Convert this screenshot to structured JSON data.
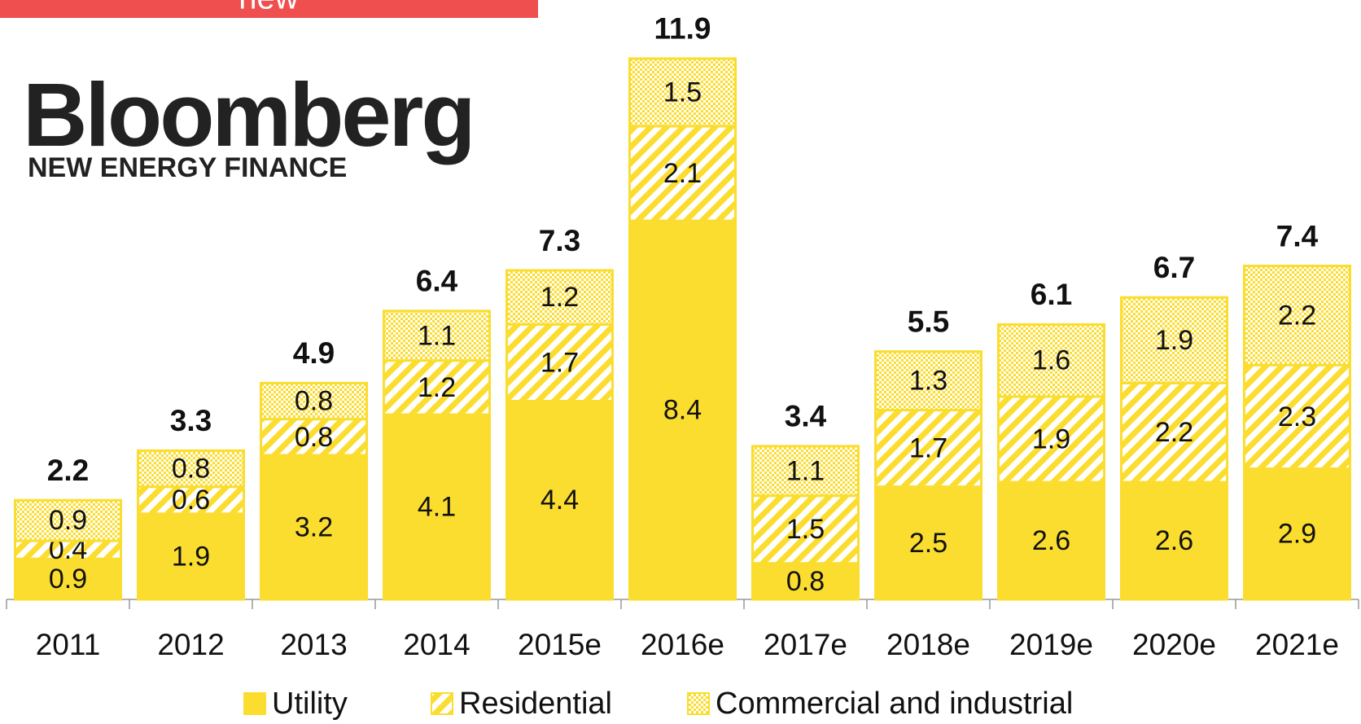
{
  "banner": "new",
  "logo": {
    "name": "Bloomberg",
    "subtitle": "NEW ENERGY FINANCE"
  },
  "chart_data": {
    "type": "stacked_bar",
    "categories": [
      "2011",
      "2012",
      "2013",
      "2014",
      "2015e",
      "2016e",
      "2017e",
      "2018e",
      "2019e",
      "2020e",
      "2021e"
    ],
    "series": [
      {
        "name": "Utility",
        "color": "#fbdd2f",
        "pattern": "solid",
        "values": [
          0.9,
          1.9,
          3.2,
          4.1,
          4.4,
          8.4,
          0.8,
          2.5,
          2.6,
          2.6,
          2.9
        ]
      },
      {
        "name": "Residential",
        "color": "#fbdd2f",
        "pattern": "stripes",
        "values": [
          0.4,
          0.6,
          0.8,
          1.2,
          1.7,
          2.1,
          1.5,
          1.7,
          1.9,
          2.2,
          2.3
        ]
      },
      {
        "name": "Commercial and industrial",
        "color": "#fbdd2f",
        "pattern": "dots",
        "values": [
          0.9,
          0.8,
          0.8,
          1.1,
          1.2,
          1.5,
          1.1,
          1.3,
          1.6,
          1.9,
          2.2
        ]
      }
    ],
    "totals": [
      2.2,
      3.3,
      4.9,
      6.4,
      7.3,
      11.9,
      3.4,
      5.5,
      6.1,
      6.7,
      7.4
    ],
    "ylim": [
      0,
      13.3
    ]
  }
}
